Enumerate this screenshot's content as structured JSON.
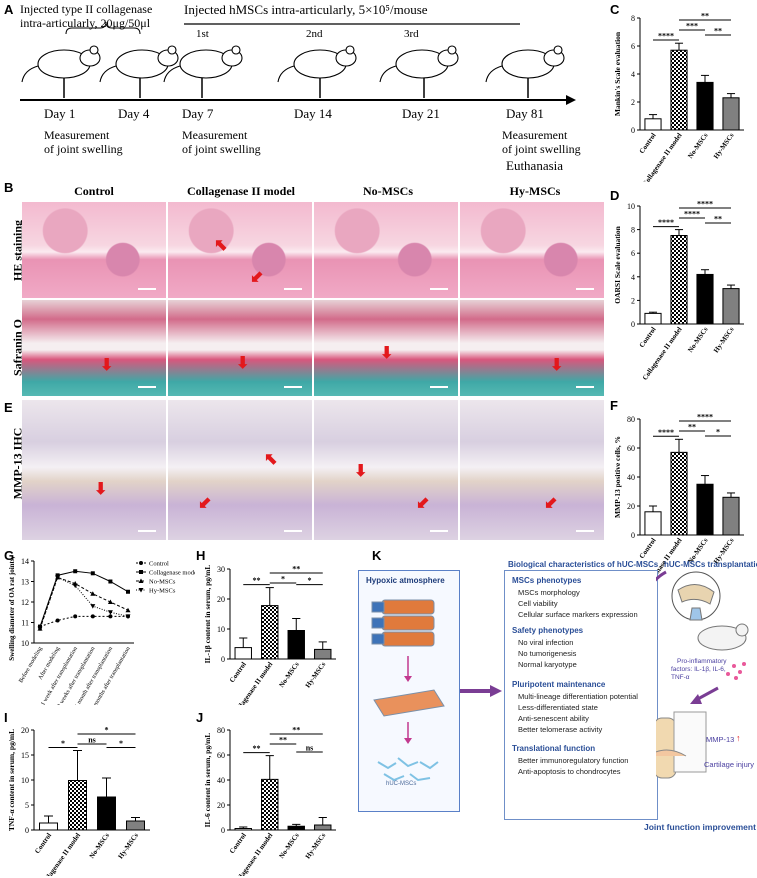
{
  "panels": {
    "a": {
      "letter": "A",
      "top_left": "Injected type II collagenase",
      "top_left2": "intra-articularly, 20μg/50μl",
      "top_right": "Injected hMSCs intra-articularly, 5×10⁵/mouse",
      "ordinals": [
        "1st",
        "2nd",
        "3rd"
      ],
      "days": [
        "Day 1",
        "Day 4",
        "Day 7",
        "Day 14",
        "Day 21",
        "Day 81"
      ],
      "notes": [
        "Measurement",
        "of joint swelling",
        "Measurement",
        "of joint swelling",
        "Measurement",
        "of joint swelling",
        "Euthanasia"
      ]
    },
    "b": {
      "letter": "B",
      "columns": [
        "Control",
        "Collagenase II model",
        "No-MSCs",
        "Hy-MSCs"
      ],
      "rows": [
        "HE staining",
        "Safranin O"
      ]
    },
    "e": {
      "letter": "E",
      "row": "MMP-13 IHC"
    },
    "k": {
      "letter": "K",
      "hypoxic": "Hypoxic atmosphere",
      "huc_label": "hUC-MSCs",
      "bio_title": "Biological characteristics of hUC-MSCs",
      "groups": [
        {
          "head": "MSCs phenotypes",
          "items": [
            "MSCs morphology",
            "Cell viability",
            "Cellular surface markers expression"
          ]
        },
        {
          "head": "Safety phenotypes",
          "items": [
            "No viral infection",
            "No tumorigenesis",
            "Normal karyotype"
          ]
        },
        {
          "head": "Pluripotent maintenance",
          "items": [
            "Multi-lineage differentiation potential",
            "Less-differentiated state",
            "Anti-senescent ability",
            "Better telomerase activity"
          ]
        },
        {
          "head": "Translational function",
          "items": [
            "Better immunoregulatory function",
            "Anti-apoptosis to chondrocytes"
          ]
        }
      ],
      "transplant_title": "hUC-MSCs transplantation",
      "pro_inflam": "Pro-inflammatory",
      "factors": "factors: IL-1β, IL-6,",
      "tnf": "TNF-α",
      "mmp13": "MMP-13",
      "cartilage": "Cartilage injury",
      "improvement": "Joint function improvement"
    }
  },
  "chart_data": [
    {
      "id": "C",
      "type": "bar",
      "categories": [
        "Control",
        "Collagenase II model",
        "No-MSCs",
        "Hy-MSCs"
      ],
      "values": [
        0.8,
        5.7,
        3.4,
        2.3
      ],
      "errors": [
        0.3,
        0.5,
        0.5,
        0.3
      ],
      "ylabel": "Mankin's Scale evaluation",
      "ylim": [
        0,
        8
      ],
      "yticks": [
        0,
        2,
        4,
        6,
        8
      ],
      "significance": [
        "****",
        "***",
        "**",
        "**"
      ]
    },
    {
      "id": "D",
      "type": "bar",
      "categories": [
        "Control",
        "Collagenase II model",
        "No-MSCs",
        "Hy-MSCs"
      ],
      "values": [
        0.9,
        7.5,
        4.2,
        3.0
      ],
      "errors": [
        0.1,
        0.5,
        0.4,
        0.3
      ],
      "ylabel": "OARSI Scale evaluation",
      "ylim": [
        0,
        10
      ],
      "yticks": [
        0,
        2,
        4,
        6,
        8,
        10
      ],
      "significance": [
        "****",
        "****",
        "****",
        "**"
      ]
    },
    {
      "id": "F",
      "type": "bar",
      "categories": [
        "Control",
        "Collagenase II model",
        "No-MSCs",
        "Hy-MSCs"
      ],
      "values": [
        16,
        57,
        35,
        26
      ],
      "errors": [
        4,
        9,
        6,
        3
      ],
      "ylabel": "MMP-13 positive cells, %",
      "ylim": [
        0,
        80
      ],
      "yticks": [
        0,
        20,
        40,
        60,
        80
      ],
      "significance": [
        "****",
        "**",
        "****",
        "*"
      ]
    },
    {
      "id": "G",
      "type": "line",
      "categories": [
        "Before modeling",
        "After modeling",
        "1 week after transplantation",
        "2 weeks after transplantation",
        "1 month after transplantation",
        "2 months after transplantation"
      ],
      "series": [
        {
          "name": "Control",
          "values": [
            10.8,
            11.1,
            11.3,
            11.3,
            11.3,
            11.3
          ]
        },
        {
          "name": "Collagenase model",
          "values": [
            10.8,
            13.3,
            13.5,
            13.4,
            13.0,
            12.5
          ]
        },
        {
          "name": "No-MSCs",
          "values": [
            10.7,
            13.2,
            12.9,
            12.4,
            12.0,
            11.6
          ]
        },
        {
          "name": "Hy-MSCs",
          "values": [
            10.7,
            13.2,
            12.8,
            11.8,
            11.5,
            11.3
          ]
        }
      ],
      "ylabel": "Swelling diameter of OA rat joints, mm",
      "ylim": [
        10,
        14
      ],
      "yticks": [
        10,
        11,
        12,
        13,
        14
      ]
    },
    {
      "id": "H",
      "type": "bar",
      "categories": [
        "Control",
        "Collagenase II model",
        "No-MSCs",
        "Hy-MSCs"
      ],
      "values": [
        3.8,
        17.8,
        9.5,
        3.2
      ],
      "errors": [
        3.2,
        6,
        4,
        2.5
      ],
      "ylabel": "IL-1β content in serum, pg/mL",
      "ylim": [
        0,
        30
      ],
      "yticks": [
        0,
        10,
        20,
        30
      ],
      "significance": [
        "**",
        "*",
        "**",
        "*"
      ]
    },
    {
      "id": "I",
      "type": "bar",
      "categories": [
        "Control",
        "Collagenase II model",
        "No-MSCs",
        "Hy-MSCs"
      ],
      "values": [
        1.4,
        9.9,
        6.6,
        1.8
      ],
      "errors": [
        1.4,
        6,
        3.8,
        0.7
      ],
      "ylabel": "TNF-α content in serum, pg/mL",
      "ylim": [
        0,
        20
      ],
      "yticks": [
        0,
        5,
        10,
        15,
        20
      ],
      "significance": [
        "*",
        "ns",
        "*",
        "*"
      ]
    },
    {
      "id": "J",
      "type": "bar",
      "categories": [
        "Control",
        "Collagenase II model",
        "No-MSCs",
        "Hy-MSCs"
      ],
      "values": [
        1.2,
        40.5,
        3.0,
        4.0
      ],
      "errors": [
        1.2,
        19,
        1.5,
        6
      ],
      "ylabel": "IL-6 content in serum, pg/mL",
      "ylim": [
        0,
        80
      ],
      "yticks": [
        0,
        20,
        40,
        60,
        80
      ],
      "significance": [
        "**",
        "**",
        "**",
        "ns"
      ]
    }
  ]
}
